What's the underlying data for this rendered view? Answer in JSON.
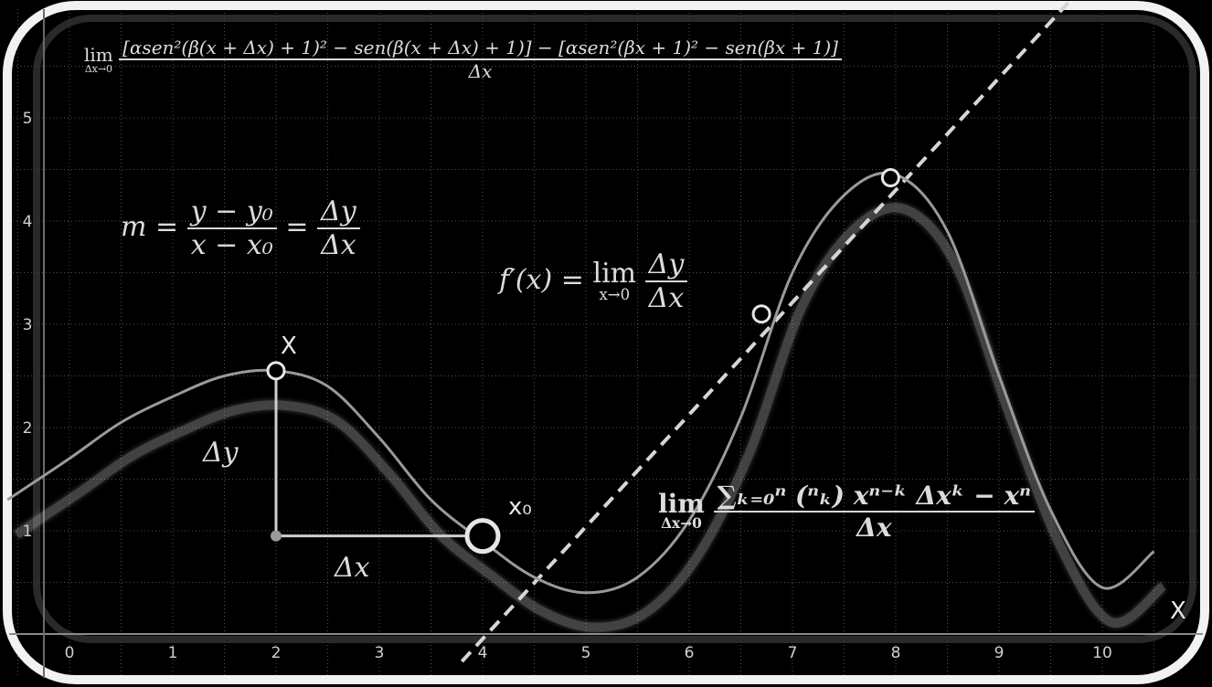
{
  "formulas": {
    "top_lim": "lim",
    "top_lim_sub": "Δx→0",
    "top_numerator": "[αsen²(β(x + Δx) + 1)² − sen(β(x + Δx) + 1)] − [αsen²(βx + 1)² − sen(βx + 1)]",
    "top_denominator": "Δx",
    "slope_m": "m =",
    "slope_num1": "y − y₀",
    "slope_den1": "x − x₀",
    "slope_eq": "=",
    "slope_num2": "Δy",
    "slope_den2": "Δx",
    "deriv_lhs": "f′(x) =",
    "deriv_lim": "lim",
    "deriv_lim_sub": "x→0",
    "deriv_num": "Δy",
    "deriv_den": "Δx",
    "binom_lim": "lim",
    "binom_lim_sub": "Δx→0",
    "binom_num": "∑ₖ₌₀ⁿ (ⁿₖ) xⁿ⁻ᵏ Δxᵏ − xⁿ",
    "binom_den": "Δx"
  },
  "labels": {
    "point_x": "X",
    "point_x0": "x₀",
    "delta_y": "Δy",
    "delta_x": "Δx",
    "axis_x": "X"
  },
  "chart_data": {
    "type": "line",
    "x_ticks": [
      "0",
      "1",
      "2",
      "3",
      "4",
      "5",
      "6",
      "7",
      "8",
      "9",
      "10"
    ],
    "y_ticks": [
      "1",
      "2",
      "3",
      "4",
      "5"
    ],
    "xlim": [
      -0.5,
      10.5
    ],
    "ylim": [
      0,
      5.7
    ],
    "grid": true,
    "curve": {
      "x": [
        -0.6,
        0,
        0.5,
        1,
        1.5,
        2,
        2.5,
        3,
        3.5,
        4,
        4.5,
        5,
        5.5,
        6,
        6.5,
        7,
        7.5,
        8,
        8.5,
        9,
        9.5,
        10,
        10.5
      ],
      "y": [
        1.3,
        1.7,
        2.05,
        2.3,
        2.5,
        2.55,
        2.4,
        1.9,
        1.3,
        0.9,
        0.55,
        0.4,
        0.55,
        1.1,
        2.1,
        3.5,
        4.25,
        4.45,
        3.9,
        2.5,
        1.2,
        0.45,
        0.8
      ]
    },
    "tangent": {
      "x": [
        3.8,
        10.3
      ],
      "y": [
        0,
        6.8
      ]
    },
    "points": [
      {
        "x": 2.0,
        "y": 2.55
      },
      {
        "x": 4.0,
        "y": 0.95
      },
      {
        "x": 6.7,
        "y": 3.1
      },
      {
        "x": 7.95,
        "y": 4.42
      }
    ],
    "delta_corner": {
      "x": 2.0,
      "y": 0.95
    }
  }
}
